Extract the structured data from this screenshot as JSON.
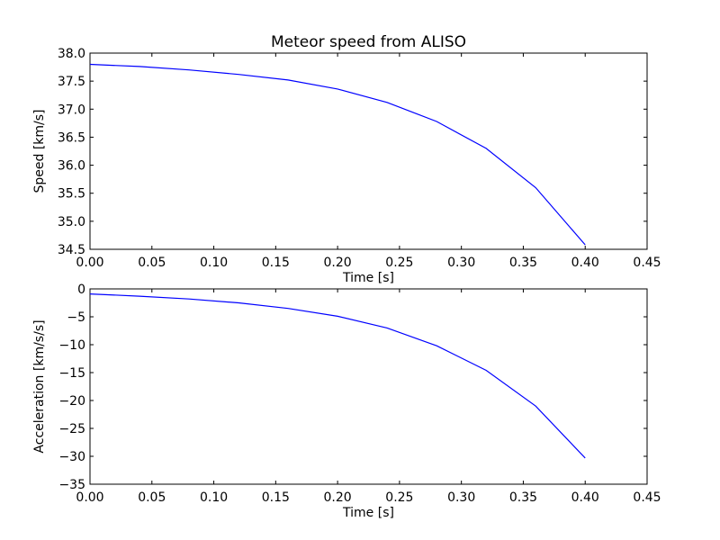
{
  "chart_data": [
    {
      "type": "line",
      "title": "Meteor speed from ALISO",
      "xlabel": "Time [s]",
      "ylabel": "Speed [km/s]",
      "xlim": [
        0.0,
        0.45
      ],
      "ylim": [
        34.5,
        38.0
      ],
      "xticks": [
        "0.00",
        "0.05",
        "0.10",
        "0.15",
        "0.20",
        "0.25",
        "0.30",
        "0.35",
        "0.40",
        "0.45"
      ],
      "yticks": [
        "34.5",
        "35.0",
        "35.5",
        "36.0",
        "36.5",
        "37.0",
        "37.5",
        "38.0"
      ],
      "grid": false,
      "series": [
        {
          "color": "#0000ff",
          "x": [
            0.0,
            0.04,
            0.08,
            0.12,
            0.16,
            0.2,
            0.24,
            0.28,
            0.32,
            0.36,
            0.4
          ],
          "y": [
            37.8,
            37.76,
            37.7,
            37.62,
            37.52,
            37.36,
            37.12,
            36.78,
            36.3,
            35.6,
            34.58
          ]
        }
      ]
    },
    {
      "type": "line",
      "title": "",
      "xlabel": "Time [s]",
      "ylabel": "Acceleration [km/s/s]",
      "xlim": [
        0.0,
        0.45
      ],
      "ylim": [
        -35,
        0
      ],
      "xticks": [
        "0.00",
        "0.05",
        "0.10",
        "0.15",
        "0.20",
        "0.25",
        "0.30",
        "0.35",
        "0.40",
        "0.45"
      ],
      "yticks": [
        "−35",
        "−30",
        "−25",
        "−20",
        "−15",
        "−10",
        "−5",
        "0"
      ],
      "grid": false,
      "series": [
        {
          "color": "#0000ff",
          "x": [
            0.0,
            0.04,
            0.08,
            0.12,
            0.16,
            0.2,
            0.24,
            0.28,
            0.32,
            0.36,
            0.4
          ],
          "y": [
            -0.9,
            -1.3,
            -1.8,
            -2.5,
            -3.5,
            -4.9,
            -7.0,
            -10.2,
            -14.6,
            -21.0,
            -30.3
          ]
        }
      ]
    }
  ]
}
